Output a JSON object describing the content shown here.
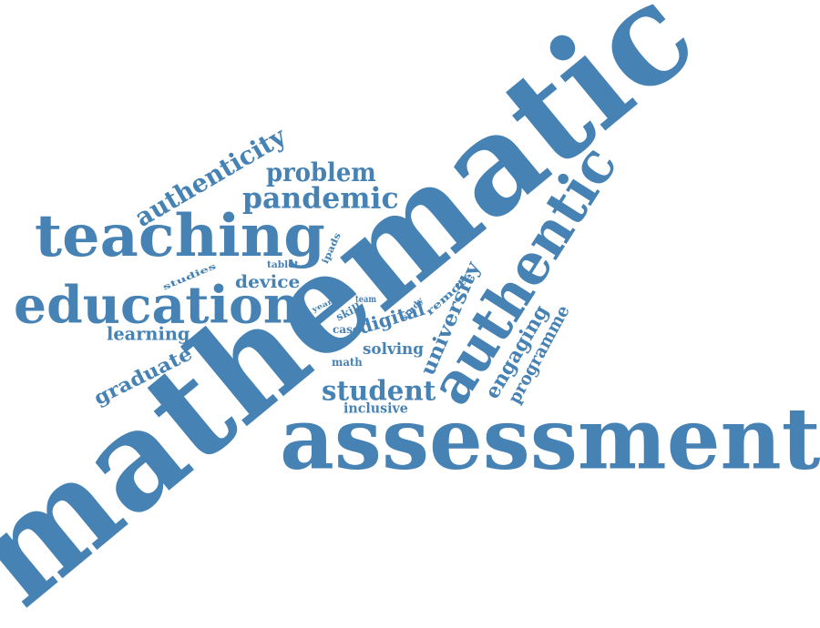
{
  "words": [
    {
      "text": "mathematic"
    },
    {
      "text": "assessment"
    },
    {
      "text": "authentic"
    },
    {
      "text": "teaching"
    },
    {
      "text": "education"
    },
    {
      "text": "pandemic"
    },
    {
      "text": "problem"
    },
    {
      "text": "authenticity"
    },
    {
      "text": "student"
    },
    {
      "text": "university"
    },
    {
      "text": "engaging"
    },
    {
      "text": "programme"
    },
    {
      "text": "graduate"
    },
    {
      "text": "learning"
    },
    {
      "text": "digital"
    },
    {
      "text": "solving"
    },
    {
      "text": "device"
    },
    {
      "text": "inclusive"
    },
    {
      "text": "remote"
    },
    {
      "text": "ipads"
    },
    {
      "text": "tablet"
    },
    {
      "text": "studies"
    },
    {
      "text": "study"
    },
    {
      "text": "team"
    },
    {
      "text": "year"
    },
    {
      "text": "skill"
    },
    {
      "text": "case"
    },
    {
      "text": "math"
    }
  ],
  "colors": {
    "word": "#4682b4",
    "background": "#ffffff"
  }
}
